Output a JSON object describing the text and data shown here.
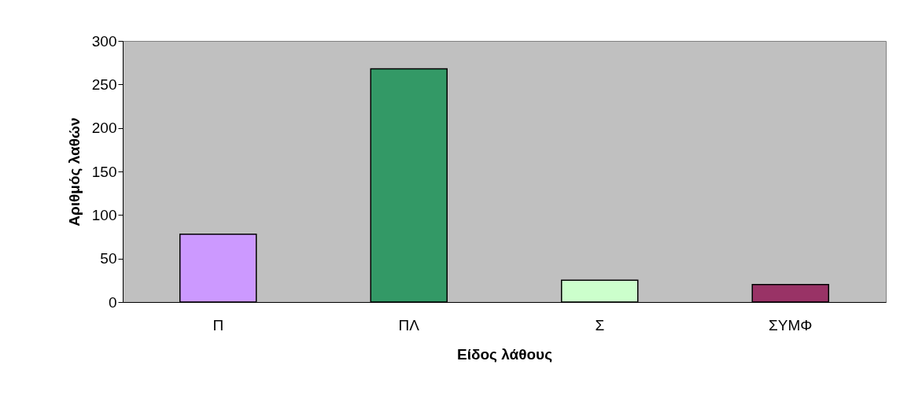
{
  "chart_data": {
    "type": "bar",
    "xlabel": "Είδος λάθους",
    "ylabel": "Αριθμός λαθών",
    "categories": [
      "Π",
      "ΠΛ",
      "Σ",
      "ΣΥΜΦ"
    ],
    "values": [
      78,
      268,
      25,
      20
    ],
    "colors": [
      "#cc99ff",
      "#339966",
      "#ccffcc",
      "#993366"
    ],
    "ylim": [
      0,
      300
    ],
    "yticks": [
      0,
      50,
      100,
      150,
      200,
      250,
      300
    ],
    "grid": false
  }
}
